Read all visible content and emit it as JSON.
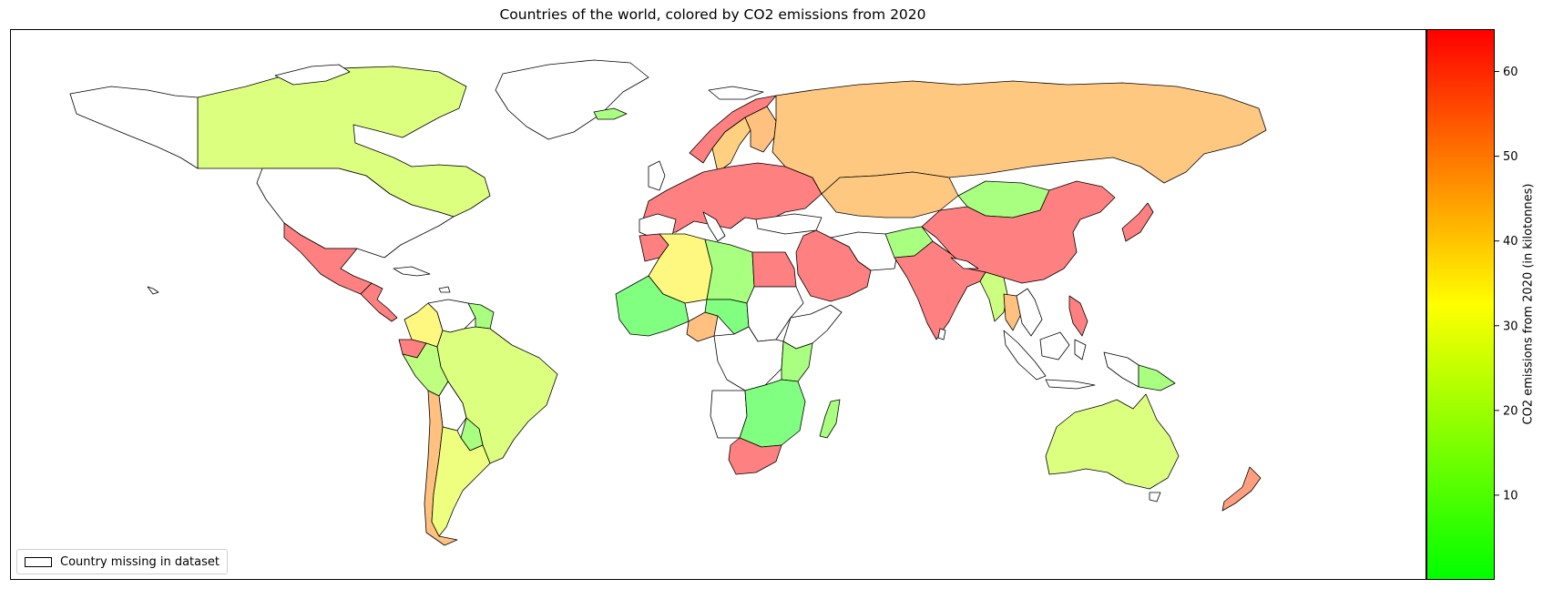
{
  "title": "Countries of the world, colored by CO2 emissions from 2020",
  "legend": {
    "label": "Country missing in dataset"
  },
  "colorbar": {
    "label": "CO2 emissions from 2020 (in kilotonnes)",
    "min": 0,
    "max": 65,
    "ticks": [
      "10",
      "20",
      "30",
      "40",
      "50",
      "60"
    ],
    "tick_values": [
      10,
      20,
      30,
      40,
      50,
      60
    ],
    "colors": {
      "low": "#00ff00",
      "mid": "#ffff00",
      "high": "#ff0000"
    }
  },
  "map": {
    "projection": "equirectangular",
    "missing_fill": "#ffffff",
    "outline_color": "#000000",
    "regions": [
      {
        "name": "Canada",
        "fill": "#ddff80"
      },
      {
        "name": "Greenland",
        "fill": "#ffffff"
      },
      {
        "name": "United States",
        "fill": "#ffffff"
      },
      {
        "name": "Mexico",
        "fill": "#ff8080"
      },
      {
        "name": "Central America",
        "fill": "#ff8080"
      },
      {
        "name": "Colombia",
        "fill": "#fff880"
      },
      {
        "name": "Venezuela",
        "fill": "#ffffff"
      },
      {
        "name": "Guianas",
        "fill": "#a8ff80"
      },
      {
        "name": "Ecuador",
        "fill": "#ff8080"
      },
      {
        "name": "Peru",
        "fill": "#bfff80"
      },
      {
        "name": "Brazil",
        "fill": "#ddff80"
      },
      {
        "name": "Bolivia",
        "fill": "#ffffff"
      },
      {
        "name": "Paraguay",
        "fill": "#a8ff80"
      },
      {
        "name": "Chile",
        "fill": "#ffc080"
      },
      {
        "name": "Argentina",
        "fill": "#eeff80"
      },
      {
        "name": "Iceland",
        "fill": "#a8ff80"
      },
      {
        "name": "Norway",
        "fill": "#ff8080"
      },
      {
        "name": "Sweden",
        "fill": "#ffd080"
      },
      {
        "name": "Finland",
        "fill": "#ffc080"
      },
      {
        "name": "Europe",
        "fill": "#ff8080"
      },
      {
        "name": "Russia",
        "fill": "#ffc880"
      },
      {
        "name": "Kazakhstan",
        "fill": "#ffc880"
      },
      {
        "name": "Mongolia",
        "fill": "#a8ff80"
      },
      {
        "name": "China",
        "fill": "#ff8080"
      },
      {
        "name": "Japan",
        "fill": "#ff8080"
      },
      {
        "name": "Turkey",
        "fill": "#ffffff"
      },
      {
        "name": "Middle East",
        "fill": "#ff8080"
      },
      {
        "name": "Iran",
        "fill": "#ffffff"
      },
      {
        "name": "Afghanistan",
        "fill": "#a8ff80"
      },
      {
        "name": "India",
        "fill": "#ff8080"
      },
      {
        "name": "Myanmar",
        "fill": "#ccff80"
      },
      {
        "name": "Thailand",
        "fill": "#ffc080"
      },
      {
        "name": "Indonesia",
        "fill": "#ff8080"
      },
      {
        "name": "Philippines",
        "fill": "#ff8080"
      },
      {
        "name": "Papua New Guinea",
        "fill": "#a8ff80"
      },
      {
        "name": "Australia",
        "fill": "#ddff80"
      },
      {
        "name": "New Zealand",
        "fill": "#ff9f80"
      },
      {
        "name": "Morocco",
        "fill": "#ff8080"
      },
      {
        "name": "Algeria",
        "fill": "#fff880"
      },
      {
        "name": "Libya",
        "fill": "#a8ff80"
      },
      {
        "name": "Egypt",
        "fill": "#ff8080"
      },
      {
        "name": "West Africa",
        "fill": "#80ff80"
      },
      {
        "name": "Chad",
        "fill": "#80ff80"
      },
      {
        "name": "Sudan",
        "fill": "#ffffff"
      },
      {
        "name": "Nigeria",
        "fill": "#ffc080"
      },
      {
        "name": "Central Africa",
        "fill": "#ffffff"
      },
      {
        "name": "East Africa",
        "fill": "#a8ff80"
      },
      {
        "name": "Southern Africa",
        "fill": "#80ff80"
      },
      {
        "name": "South Africa",
        "fill": "#ff8080"
      },
      {
        "name": "Madagascar",
        "fill": "#a8ff80"
      }
    ]
  }
}
